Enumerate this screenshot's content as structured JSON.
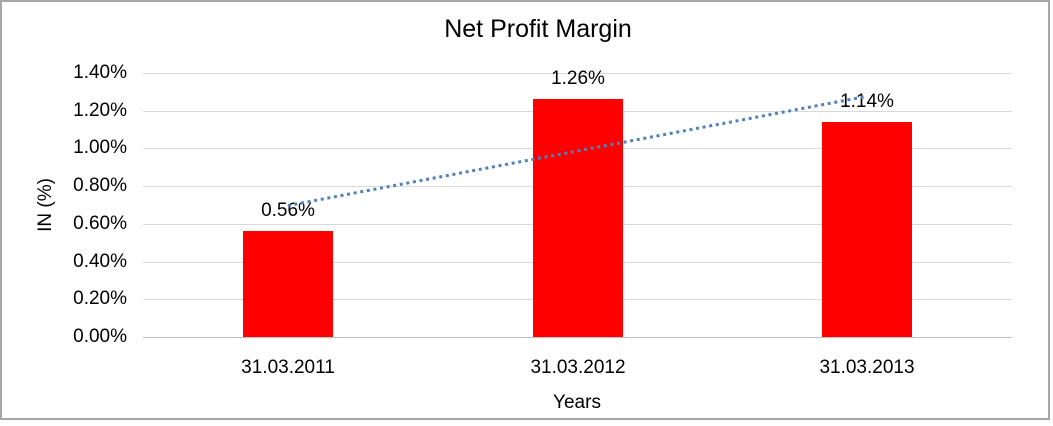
{
  "chart_data": {
    "type": "bar",
    "title": "Net Profit Margin",
    "xlabel": "Years",
    "ylabel": "IN (%)",
    "categories": [
      "31.03.2011",
      "31.03.2012",
      "31.03.2013"
    ],
    "values": [
      0.56,
      1.26,
      1.14
    ],
    "data_labels": [
      "0.56%",
      "1.26%",
      "1.14%"
    ],
    "ylim": [
      0,
      1.4
    ],
    "ytick_step": 0.2,
    "ytick_labels": [
      "0.00%",
      "0.20%",
      "0.40%",
      "0.60%",
      "0.80%",
      "1.00%",
      "1.20%",
      "1.40%"
    ],
    "grid": true,
    "legend": "none",
    "trendline": {
      "type": "linear",
      "style": "dotted"
    },
    "colors": {
      "bar": "#ff0000",
      "trendline": "#4f81bd",
      "gridline": "#d9d9d9",
      "axis_line": "#bfbfbf",
      "border": "#a6a6a6",
      "text": "#000000"
    }
  }
}
